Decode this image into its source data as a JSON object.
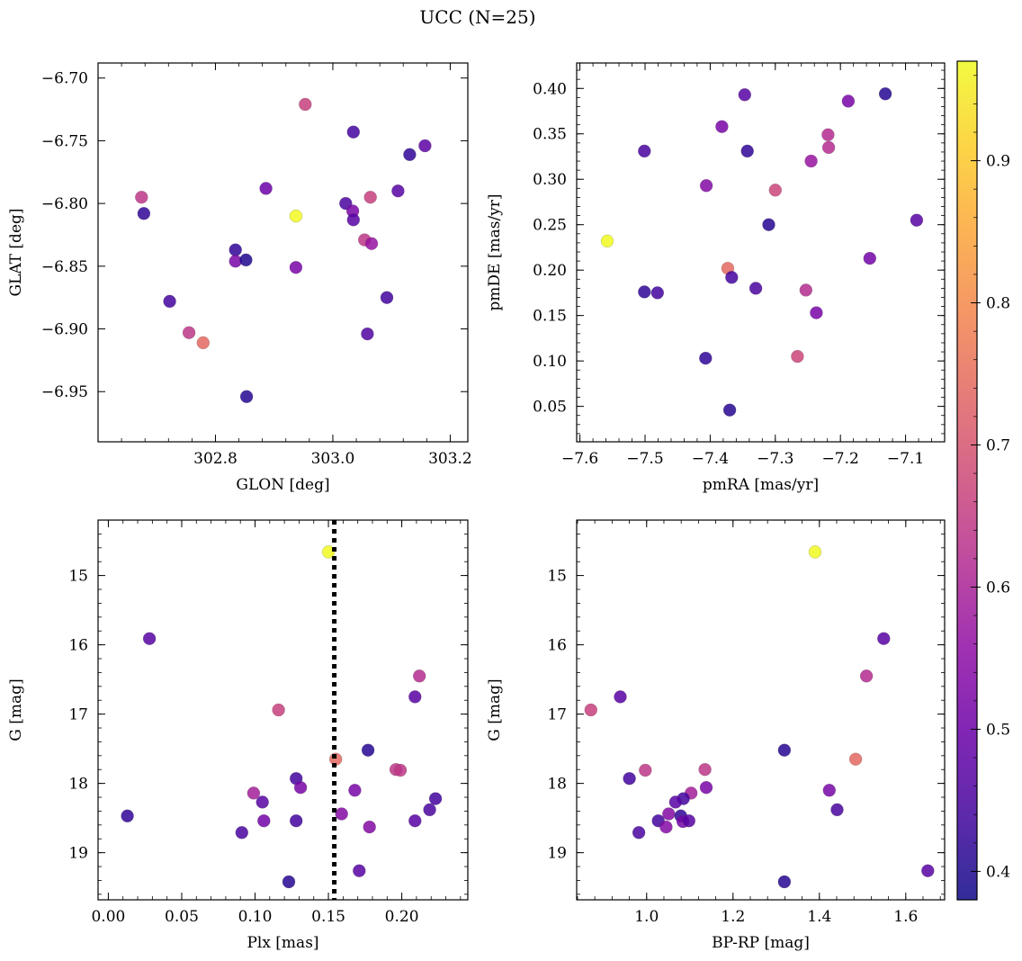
{
  "chart_data": [
    {
      "type": "scatter",
      "title": "UCC (N=25)",
      "panels": [
        {
          "id": "glon-glat",
          "xlabel": "GLON [deg]",
          "ylabel": "GLAT [deg]",
          "xlim": [
            302.6,
            303.23
          ],
          "ylim": [
            -6.99,
            -6.688
          ],
          "yinverted": false,
          "xticks": [
            {
              "v": 302.8,
              "label": "302.8"
            },
            {
              "v": 303.0,
              "label": "303.0"
            },
            {
              "v": 303.2,
              "label": "303.2"
            }
          ],
          "yticks": [
            {
              "v": -6.7,
              "label": "−6.70"
            },
            {
              "v": -6.75,
              "label": "−6.75"
            },
            {
              "v": -6.8,
              "label": "−6.80"
            },
            {
              "v": -6.85,
              "label": "−6.85"
            },
            {
              "v": -6.9,
              "label": "−6.90"
            },
            {
              "v": -6.95,
              "label": "−6.95"
            }
          ],
          "points": [
            {
              "x": 302.953,
              "y": -6.721,
              "c": 0.66
            },
            {
              "x": 303.035,
              "y": -6.743,
              "c": 0.44
            },
            {
              "x": 303.157,
              "y": -6.754,
              "c": 0.48
            },
            {
              "x": 303.131,
              "y": -6.761,
              "c": 0.42
            },
            {
              "x": 302.674,
              "y": -6.795,
              "c": 0.64
            },
            {
              "x": 302.678,
              "y": -6.808,
              "c": 0.42
            },
            {
              "x": 302.886,
              "y": -6.788,
              "c": 0.5
            },
            {
              "x": 302.937,
              "y": -6.81,
              "c": 0.97
            },
            {
              "x": 303.111,
              "y": -6.79,
              "c": 0.47
            },
            {
              "x": 303.022,
              "y": -6.8,
              "c": 0.45
            },
            {
              "x": 303.034,
              "y": -6.806,
              "c": 0.52
            },
            {
              "x": 303.064,
              "y": -6.795,
              "c": 0.66
            },
            {
              "x": 303.035,
              "y": -6.813,
              "c": 0.47
            },
            {
              "x": 303.054,
              "y": -6.829,
              "c": 0.64
            },
            {
              "x": 303.066,
              "y": -6.832,
              "c": 0.57
            },
            {
              "x": 302.834,
              "y": -6.837,
              "c": 0.42
            },
            {
              "x": 302.834,
              "y": -6.846,
              "c": 0.52
            },
            {
              "x": 302.852,
              "y": -6.845,
              "c": 0.4
            },
            {
              "x": 302.937,
              "y": -6.851,
              "c": 0.52
            },
            {
              "x": 302.722,
              "y": -6.878,
              "c": 0.44
            },
            {
              "x": 303.092,
              "y": -6.875,
              "c": 0.44
            },
            {
              "x": 302.755,
              "y": -6.903,
              "c": 0.64
            },
            {
              "x": 302.779,
              "y": -6.911,
              "c": 0.74
            },
            {
              "x": 303.059,
              "y": -6.904,
              "c": 0.46
            },
            {
              "x": 302.853,
              "y": -6.954,
              "c": 0.41
            }
          ]
        },
        {
          "id": "pm",
          "xlabel": "pmRA [mas/yr]",
          "ylabel": "pmDE [mas/yr]",
          "xlim": [
            -7.605,
            -7.04
          ],
          "ylim": [
            0.011,
            0.428
          ],
          "yinverted": false,
          "xticks": [
            {
              "v": -7.6,
              "label": "−7.6"
            },
            {
              "v": -7.5,
              "label": "−7.5"
            },
            {
              "v": -7.4,
              "label": "−7.4"
            },
            {
              "v": -7.3,
              "label": "−7.3"
            },
            {
              "v": -7.2,
              "label": "−7.2"
            },
            {
              "v": -7.1,
              "label": "−7.1"
            }
          ],
          "yticks": [
            {
              "v": 0.05,
              "label": "0.05"
            },
            {
              "v": 0.1,
              "label": "0.10"
            },
            {
              "v": 0.15,
              "label": "0.15"
            },
            {
              "v": 0.2,
              "label": "0.20"
            },
            {
              "v": 0.25,
              "label": "0.25"
            },
            {
              "v": 0.3,
              "label": "0.30"
            },
            {
              "v": 0.35,
              "label": "0.35"
            },
            {
              "v": 0.4,
              "label": "0.40"
            }
          ],
          "points": [
            {
              "x": -7.131,
              "y": 0.394,
              "c": 0.41
            },
            {
              "x": -7.347,
              "y": 0.393,
              "c": 0.47
            },
            {
              "x": -7.188,
              "y": 0.386,
              "c": 0.52
            },
            {
              "x": -7.382,
              "y": 0.358,
              "c": 0.52
            },
            {
              "x": -7.219,
              "y": 0.349,
              "c": 0.62
            },
            {
              "x": -7.218,
              "y": 0.335,
              "c": 0.62
            },
            {
              "x": -7.501,
              "y": 0.331,
              "c": 0.45
            },
            {
              "x": -7.343,
              "y": 0.331,
              "c": 0.42
            },
            {
              "x": -7.245,
              "y": 0.32,
              "c": 0.57
            },
            {
              "x": -7.406,
              "y": 0.293,
              "c": 0.54
            },
            {
              "x": -7.3,
              "y": 0.288,
              "c": 0.67
            },
            {
              "x": -7.083,
              "y": 0.255,
              "c": 0.47
            },
            {
              "x": -7.31,
              "y": 0.25,
              "c": 0.41
            },
            {
              "x": -7.558,
              "y": 0.232,
              "c": 0.97
            },
            {
              "x": -7.155,
              "y": 0.213,
              "c": 0.51
            },
            {
              "x": -7.373,
              "y": 0.202,
              "c": 0.74
            },
            {
              "x": -7.367,
              "y": 0.192,
              "c": 0.44
            },
            {
              "x": -7.33,
              "y": 0.18,
              "c": 0.45
            },
            {
              "x": -7.253,
              "y": 0.178,
              "c": 0.62
            },
            {
              "x": -7.501,
              "y": 0.176,
              "c": 0.42
            },
            {
              "x": -7.481,
              "y": 0.175,
              "c": 0.44
            },
            {
              "x": -7.237,
              "y": 0.153,
              "c": 0.52
            },
            {
              "x": -7.266,
              "y": 0.105,
              "c": 0.67
            },
            {
              "x": -7.407,
              "y": 0.103,
              "c": 0.42
            },
            {
              "x": -7.37,
              "y": 0.046,
              "c": 0.41
            }
          ]
        },
        {
          "id": "plx-g",
          "xlabel": "Plx [mas]",
          "ylabel": "G [mag]",
          "xlim": [
            -0.007,
            0.245
          ],
          "ylim": [
            14.2,
            19.68
          ],
          "yinverted": true,
          "vline": 0.154,
          "xticks": [
            {
              "v": 0.0,
              "label": "0.00"
            },
            {
              "v": 0.05,
              "label": "0.05"
            },
            {
              "v": 0.1,
              "label": "0.10"
            },
            {
              "v": 0.15,
              "label": "0.15"
            },
            {
              "v": 0.2,
              "label": "0.20"
            }
          ],
          "yticks": [
            {
              "v": 15,
              "label": "15"
            },
            {
              "v": 16,
              "label": "16"
            },
            {
              "v": 17,
              "label": "17"
            },
            {
              "v": 18,
              "label": "18"
            },
            {
              "v": 19,
              "label": "19"
            }
          ],
          "points": [
            {
              "x": 0.15,
              "y": 14.66,
              "c": 0.97
            },
            {
              "x": 0.028,
              "y": 15.91,
              "c": 0.47
            },
            {
              "x": 0.212,
              "y": 16.45,
              "c": 0.62
            },
            {
              "x": 0.209,
              "y": 16.75,
              "c": 0.47
            },
            {
              "x": 0.116,
              "y": 16.94,
              "c": 0.66
            },
            {
              "x": 0.177,
              "y": 17.52,
              "c": 0.41
            },
            {
              "x": 0.155,
              "y": 17.65,
              "c": 0.74
            },
            {
              "x": 0.196,
              "y": 17.8,
              "c": 0.64
            },
            {
              "x": 0.199,
              "y": 17.81,
              "c": 0.64
            },
            {
              "x": 0.128,
              "y": 17.93,
              "c": 0.44
            },
            {
              "x": 0.131,
              "y": 18.06,
              "c": 0.52
            },
            {
              "x": 0.168,
              "y": 18.1,
              "c": 0.52
            },
            {
              "x": 0.099,
              "y": 18.14,
              "c": 0.59
            },
            {
              "x": 0.223,
              "y": 18.22,
              "c": 0.44
            },
            {
              "x": 0.105,
              "y": 18.27,
              "c": 0.47
            },
            {
              "x": 0.219,
              "y": 18.38,
              "c": 0.45
            },
            {
              "x": 0.159,
              "y": 18.44,
              "c": 0.54
            },
            {
              "x": 0.013,
              "y": 18.47,
              "c": 0.42
            },
            {
              "x": 0.106,
              "y": 18.54,
              "c": 0.51
            },
            {
              "x": 0.128,
              "y": 18.54,
              "c": 0.44
            },
            {
              "x": 0.209,
              "y": 18.54,
              "c": 0.47
            },
            {
              "x": 0.178,
              "y": 18.63,
              "c": 0.54
            },
            {
              "x": 0.091,
              "y": 18.71,
              "c": 0.45
            },
            {
              "x": 0.171,
              "y": 19.26,
              "c": 0.47
            },
            {
              "x": 0.123,
              "y": 19.42,
              "c": 0.41
            }
          ]
        },
        {
          "id": "cmd",
          "xlabel": "BP-RP [mag]",
          "ylabel": "G [mag]",
          "xlim": [
            0.838,
            1.69
          ],
          "ylim": [
            14.2,
            19.68
          ],
          "yinverted": true,
          "xticks": [
            {
              "v": 1.0,
              "label": "1.0"
            },
            {
              "v": 1.2,
              "label": "1.2"
            },
            {
              "v": 1.4,
              "label": "1.4"
            },
            {
              "v": 1.6,
              "label": "1.6"
            }
          ],
          "yticks": [
            {
              "v": 15,
              "label": "15"
            },
            {
              "v": 16,
              "label": "16"
            },
            {
              "v": 17,
              "label": "17"
            },
            {
              "v": 18,
              "label": "18"
            },
            {
              "v": 19,
              "label": "19"
            }
          ],
          "points": [
            {
              "x": 1.39,
              "y": 14.66,
              "c": 0.97
            },
            {
              "x": 1.549,
              "y": 15.91,
              "c": 0.47
            },
            {
              "x": 1.509,
              "y": 16.45,
              "c": 0.62
            },
            {
              "x": 0.939,
              "y": 16.75,
              "c": 0.47
            },
            {
              "x": 0.871,
              "y": 16.94,
              "c": 0.66
            },
            {
              "x": 1.319,
              "y": 17.52,
              "c": 0.41
            },
            {
              "x": 1.484,
              "y": 17.65,
              "c": 0.74
            },
            {
              "x": 0.997,
              "y": 17.81,
              "c": 0.64
            },
            {
              "x": 1.135,
              "y": 17.8,
              "c": 0.64
            },
            {
              "x": 0.96,
              "y": 17.93,
              "c": 0.44
            },
            {
              "x": 1.138,
              "y": 18.06,
              "c": 0.52
            },
            {
              "x": 1.423,
              "y": 18.1,
              "c": 0.52
            },
            {
              "x": 1.103,
              "y": 18.14,
              "c": 0.59
            },
            {
              "x": 1.085,
              "y": 18.22,
              "c": 0.44
            },
            {
              "x": 1.067,
              "y": 18.27,
              "c": 0.47
            },
            {
              "x": 1.441,
              "y": 18.38,
              "c": 0.45
            },
            {
              "x": 1.051,
              "y": 18.44,
              "c": 0.54
            },
            {
              "x": 1.079,
              "y": 18.47,
              "c": 0.42
            },
            {
              "x": 1.027,
              "y": 18.54,
              "c": 0.44
            },
            {
              "x": 1.084,
              "y": 18.55,
              "c": 0.51
            },
            {
              "x": 1.098,
              "y": 18.54,
              "c": 0.47
            },
            {
              "x": 1.045,
              "y": 18.63,
              "c": 0.54
            },
            {
              "x": 0.982,
              "y": 18.71,
              "c": 0.45
            },
            {
              "x": 1.651,
              "y": 19.26,
              "c": 0.47
            },
            {
              "x": 1.319,
              "y": 19.42,
              "c": 0.41
            }
          ]
        }
      ],
      "colorbar": {
        "cmap": "plasma",
        "range": [
          0.38,
          0.97
        ],
        "ticks": [
          {
            "v": 0.4,
            "label": "0.4"
          },
          {
            "v": 0.5,
            "label": "0.5"
          },
          {
            "v": 0.6,
            "label": "0.6"
          },
          {
            "v": 0.7,
            "label": "0.7"
          },
          {
            "v": 0.8,
            "label": "0.8"
          },
          {
            "v": 0.9,
            "label": "0.9"
          }
        ]
      }
    }
  ]
}
